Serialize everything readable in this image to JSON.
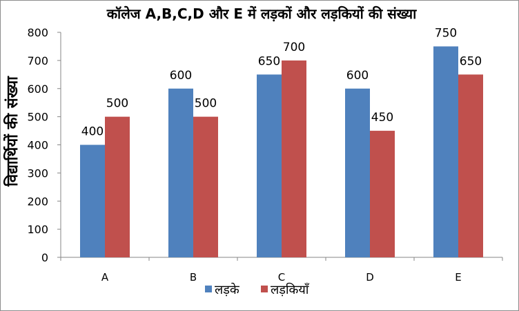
{
  "chart_data": {
    "type": "bar",
    "title": "कॉलेज A,B,C,D और E में लड़कों और लड़कियों की संख्या",
    "xlabel": "",
    "ylabel": "विद्यार्थियों की संख्या",
    "categories": [
      "A",
      "B",
      "C",
      "D",
      "E"
    ],
    "series": [
      {
        "name": "लड़के",
        "color": "#4F81BD",
        "values": [
          400,
          600,
          650,
          600,
          750
        ]
      },
      {
        "name": "लड़कियाँ",
        "color": "#C0504D",
        "values": [
          500,
          500,
          700,
          450,
          650
        ]
      }
    ],
    "ylim": [
      0,
      800
    ],
    "yticks": [
      0,
      100,
      200,
      300,
      400,
      500,
      600,
      700,
      800
    ],
    "grid": false,
    "legend_position": "bottom",
    "data_labels": true
  }
}
